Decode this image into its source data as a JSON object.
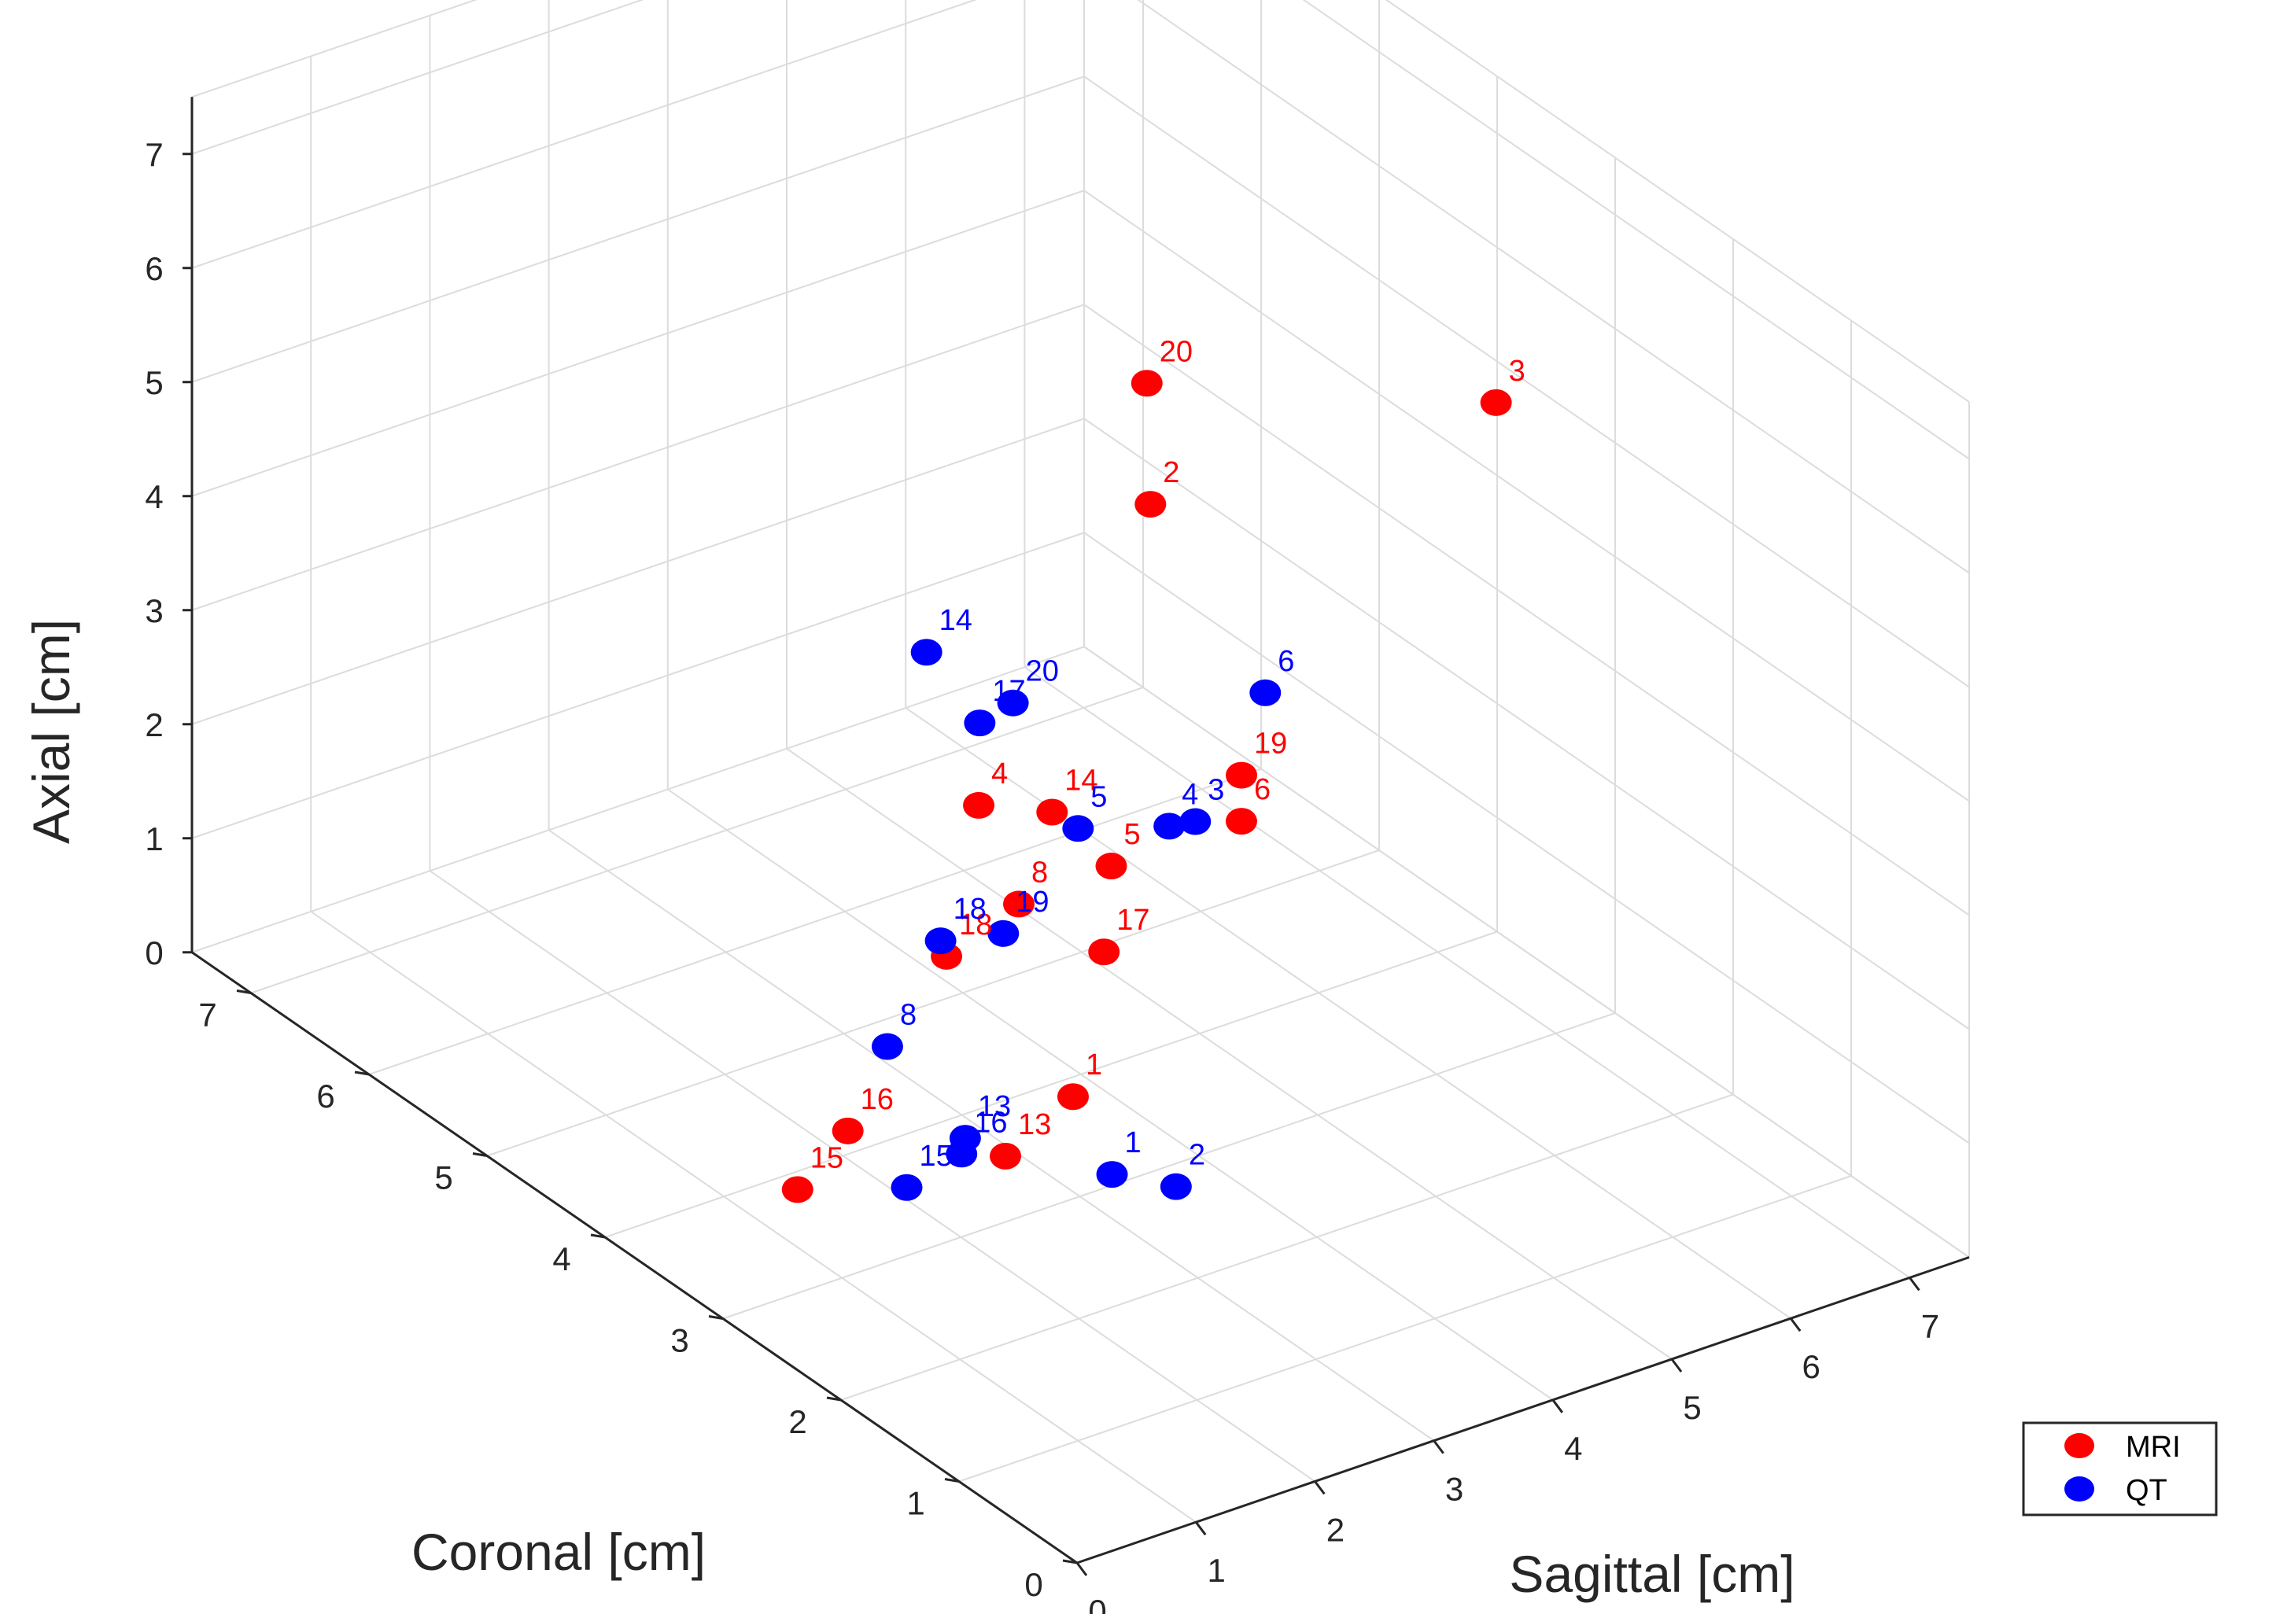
{
  "chart_data": {
    "type": "scatter3d",
    "title": "",
    "xlabel": "Sagittal [cm]",
    "ylabel": "Coronal [cm]",
    "zlabel": "Axial [cm]",
    "xlim": [
      0,
      7.5
    ],
    "ylim": [
      0,
      7.5
    ],
    "zlim": [
      0,
      7.5
    ],
    "xticks": [
      0,
      1,
      2,
      3,
      4,
      5,
      6,
      7
    ],
    "yticks": [
      0,
      1,
      2,
      3,
      4,
      5,
      6,
      7
    ],
    "zticks": [
      0,
      1,
      2,
      3,
      4,
      5,
      6,
      7
    ],
    "grid": true,
    "legend_position": "bottom-right",
    "series": [
      {
        "name": "MRI",
        "color": "#ff0000",
        "points": [
          {
            "label": "1",
            "x": 3.31,
            "y": 3.37,
            "z": 0.5
          },
          {
            "label": "2",
            "x": 3.99,
            "y": 3.4,
            "z": 5.43
          },
          {
            "label": "3",
            "x": 6.36,
            "y": 2.86,
            "z": 5.86
          },
          {
            "label": "4",
            "x": 3.35,
            "y": 4.21,
            "z": 2.44
          },
          {
            "label": "5",
            "x": 3.74,
            "y": 3.48,
            "z": 2.29
          },
          {
            "label": "6",
            "x": 4.13,
            "y": 2.77,
            "z": 3.05
          },
          {
            "label": "8",
            "x": 3.31,
            "y": 3.83,
            "z": 1.86
          },
          {
            "label": "13",
            "x": 2.91,
            "y": 3.54,
            "z": 0.0
          },
          {
            "label": "14",
            "x": 3.54,
            "y": 3.78,
            "z": 2.62
          },
          {
            "label": "15",
            "x": 1.47,
            "y": 3.85,
            "z": 0.0
          },
          {
            "label": "16",
            "x": 2.23,
            "y": 4.19,
            "z": 0.0
          },
          {
            "label": "17",
            "x": 3.52,
            "y": 3.32,
            "z": 1.73
          },
          {
            "label": "18",
            "x": 2.98,
            "y": 4.11,
            "z": 1.32
          },
          {
            "label": "19",
            "x": 4.18,
            "y": 2.82,
            "z": 3.4
          },
          {
            "label": "20",
            "x": 3.98,
            "y": 3.42,
            "z": 6.48
          }
        ]
      },
      {
        "name": "QT",
        "color": "#0000ff",
        "points": [
          {
            "label": "1",
            "x": 3.36,
            "y": 3.09,
            "z": 0.0
          },
          {
            "label": "2",
            "x": 3.62,
            "y": 2.81,
            "z": 0.0
          },
          {
            "label": "3",
            "x": 3.97,
            "y": 3.0,
            "z": 2.94
          },
          {
            "label": "4",
            "x": 3.87,
            "y": 3.12,
            "z": 2.85
          },
          {
            "label": "5",
            "x": 3.59,
            "y": 3.61,
            "z": 2.58
          },
          {
            "label": "6",
            "x": 4.4,
            "y": 2.84,
            "z": 4.03
          },
          {
            "label": "8",
            "x": 2.87,
            "y": 4.5,
            "z": 0.29
          },
          {
            "label": "13",
            "x": 2.83,
            "y": 3.8,
            "z": 0.0
          },
          {
            "label": "14",
            "x": 3.05,
            "y": 4.35,
            "z": 3.79
          },
          {
            "label": "15",
            "x": 2.1,
            "y": 3.56,
            "z": 0.0
          },
          {
            "label": "16",
            "x": 2.68,
            "y": 3.68,
            "z": 0.0
          },
          {
            "label": "17",
            "x": 3.21,
            "y": 4.06,
            "z": 3.32
          },
          {
            "label": "18",
            "x": 2.98,
            "y": 4.16,
            "z": 1.42
          },
          {
            "label": "19",
            "x": 3.16,
            "y": 3.81,
            "z": 1.67
          },
          {
            "label": "20",
            "x": 3.42,
            "y": 3.99,
            "z": 3.47
          }
        ]
      }
    ]
  }
}
